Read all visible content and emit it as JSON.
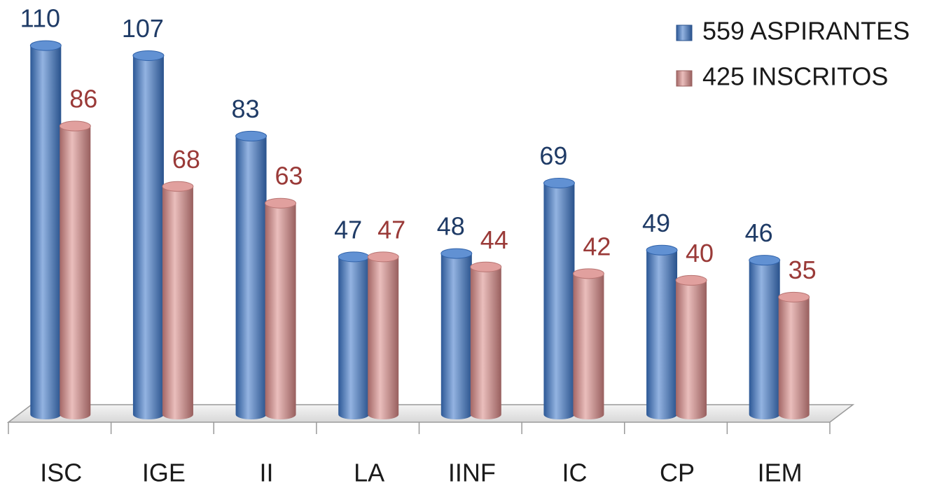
{
  "chart_data": {
    "type": "bar",
    "categories": [
      "ISC",
      "IGE",
      "II",
      "LA",
      "IINF",
      "IC",
      "CP",
      "IEM"
    ],
    "series": [
      {
        "name": "559 ASPIRANTES",
        "color": "#3a75c8",
        "values": [
          110,
          107,
          83,
          47,
          48,
          69,
          49,
          46
        ]
      },
      {
        "name": "425 INSCRITOS",
        "color": "#d98886",
        "values": [
          86,
          68,
          63,
          47,
          44,
          42,
          40,
          35
        ]
      }
    ],
    "legend": "top-right"
  }
}
